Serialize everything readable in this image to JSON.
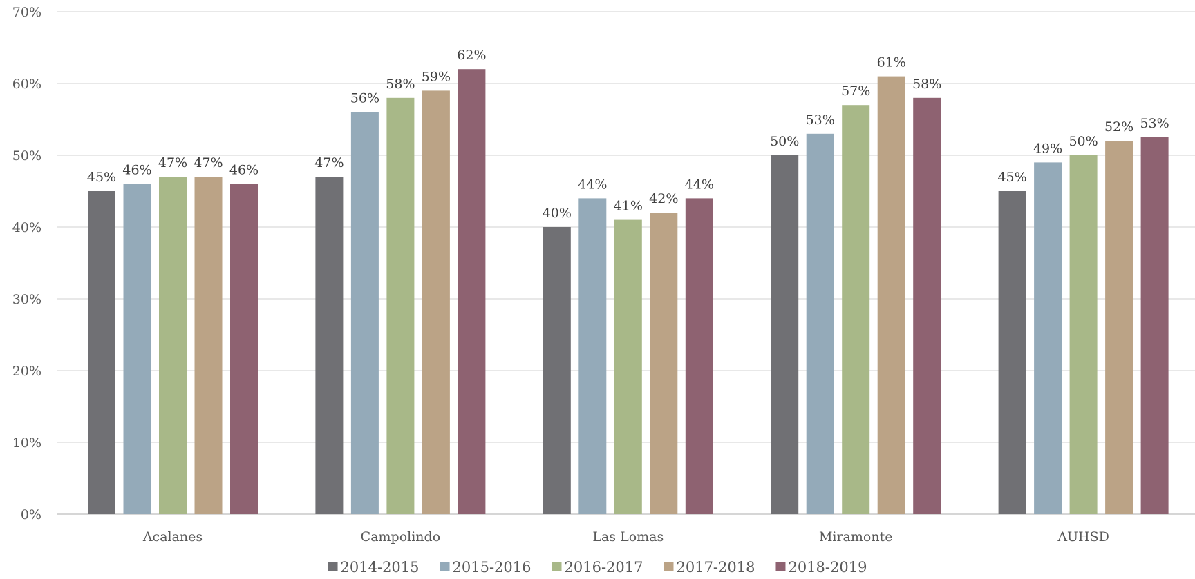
{
  "chart_data": {
    "type": "bar",
    "title": "",
    "xlabel": "",
    "ylabel": "",
    "ylim": [
      0,
      70
    ],
    "y_ticks": [
      0,
      10,
      20,
      30,
      40,
      50,
      60,
      70
    ],
    "y_tick_format": "percent",
    "grid": true,
    "legend_position": "bottom",
    "categories": [
      "Acalanes",
      "Campolindo",
      "Las Lomas",
      "Miramonte",
      "AUHSD"
    ],
    "series": [
      {
        "name": "2014-2015",
        "color": "#707074",
        "values": [
          45,
          47,
          40,
          50,
          45
        ],
        "labels": [
          "45%",
          "47%",
          "40%",
          "50%",
          "45%"
        ]
      },
      {
        "name": "2015-2016",
        "color": "#94aab9",
        "values": [
          46,
          56,
          44,
          53,
          49
        ],
        "labels": [
          "46%",
          "56%",
          "44%",
          "53%",
          "49%"
        ]
      },
      {
        "name": "2016-2017",
        "color": "#a8b888",
        "values": [
          47,
          58,
          41,
          57,
          50
        ],
        "labels": [
          "47%",
          "58%",
          "41%",
          "57%",
          "50%"
        ]
      },
      {
        "name": "2017-2018",
        "color": "#bba386",
        "values": [
          47,
          59,
          42,
          61,
          52
        ],
        "labels": [
          "47%",
          "59%",
          "42%",
          "61%",
          "52%"
        ]
      },
      {
        "name": "2018-2019",
        "color": "#8e6271",
        "values": [
          46,
          62,
          44,
          58,
          52.5
        ],
        "labels": [
          "46%",
          "62%",
          "44%",
          "58%",
          "53%"
        ]
      }
    ]
  }
}
